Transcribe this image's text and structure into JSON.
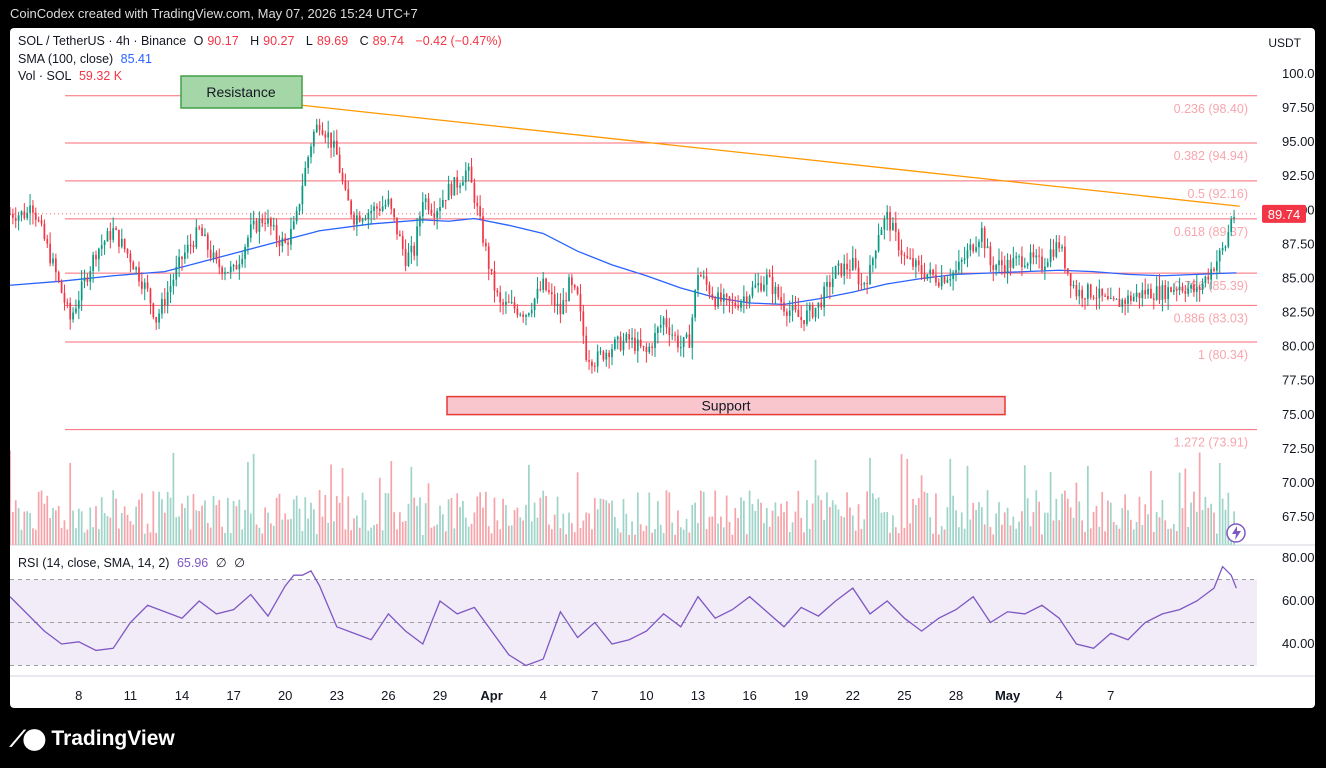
{
  "header": {
    "caption": "CoinCodex created with TradingView.com, May 07, 2026 15:24 UTC+7"
  },
  "legend": {
    "symbol": "SOL / TetherUS · 4h · Binance",
    "o_label": "O",
    "o": "90.17",
    "h_label": "H",
    "h": "90.27",
    "l_label": "L",
    "l": "89.69",
    "c_label": "C",
    "c": "89.74",
    "change": "−0.42 (−0.47%)",
    "sma_label": "SMA (100, close)",
    "sma_value": "85.41",
    "vol_label": "Vol · SOL",
    "vol_value": "59.32 K",
    "rsi_label": "RSI (14, close, SMA, 14, 2)",
    "rsi_value": "65.96",
    "rsi_na1": "∅",
    "rsi_na2": "∅"
  },
  "currency": "USDT",
  "brand": {
    "name": "TradingView",
    "logo_icon": "tradingview-logo-icon"
  },
  "colors": {
    "up": "#089981",
    "down": "#f23645",
    "sma": "#2962ff",
    "fib": "#f7525f",
    "trend": "#ff9800",
    "rsi": "#7e57c2",
    "support_fill": "#f8c6cc",
    "resistance_fill": "#a5d6a7"
  },
  "chart_data": {
    "type": "candlestick",
    "price_ylim": [
      72.5,
      101.5
    ],
    "price_ticks": [
      "100.00",
      "97.50",
      "95.00",
      "92.50",
      "90.00",
      "87.50",
      "85.00",
      "82.50",
      "80.00",
      "77.50",
      "75.00",
      "72.50",
      "70.00",
      "67.50"
    ],
    "price_tick_values": [
      100,
      97.5,
      95,
      92.5,
      90,
      87.5,
      85,
      82.5,
      80,
      77.5,
      75,
      72.5,
      70,
      67.5
    ],
    "last_price": 89.74,
    "last_price_label": "89.74",
    "x_ticks": [
      "8",
      "11",
      "14",
      "17",
      "20",
      "23",
      "26",
      "29",
      "Apr",
      "4",
      "7",
      "10",
      "13",
      "16",
      "19",
      "22",
      "25",
      "28",
      "May",
      "4",
      "7"
    ],
    "fib_levels": [
      {
        "ratio_label": "0.236 (98.40)",
        "price": 98.4
      },
      {
        "ratio_label": "0.382 (94.94)",
        "price": 94.94
      },
      {
        "ratio_label": "0.5 (92.16)",
        "price": 92.16
      },
      {
        "ratio_label": "0.618 (89.37)",
        "price": 89.37
      },
      {
        "ratio_label": "0.786 (85.39)",
        "price": 85.39
      },
      {
        "ratio_label": "0.886 (83.03)",
        "price": 83.03
      },
      {
        "ratio_label": "1 (80.34)",
        "price": 80.34
      },
      {
        "ratio_label": "1.272 (73.91)",
        "price": 73.91
      }
    ],
    "annotations": [
      {
        "label": "Resistance",
        "type": "zone-box",
        "price_top": 100.0,
        "price_bottom": 97.6,
        "from_day": 14.9,
        "to_day": 17.0
      },
      {
        "label": "Support",
        "type": "zone-box",
        "price_top": 76.7,
        "price_bottom": 75.3,
        "from_day": 28.0,
        "to_day": 25.6
      }
    ],
    "trendline": {
      "from": {
        "day": 15.3,
        "price": 97.8
      },
      "to": {
        "day": 7.2,
        "price": 90.3
      }
    },
    "close_path": [
      [
        0,
        91.5
      ],
      [
        1.5,
        86
      ],
      [
        2.5,
        82
      ],
      [
        4,
        87
      ],
      [
        5,
        88.5
      ],
      [
        6,
        86.5
      ],
      [
        7,
        84
      ],
      [
        7.5,
        82
      ],
      [
        8,
        83.5
      ],
      [
        9,
        86.5
      ],
      [
        10,
        88.5
      ],
      [
        11,
        86
      ],
      [
        12,
        85.5
      ],
      [
        13,
        88.5
      ],
      [
        13.8,
        89.5
      ],
      [
        14.5,
        88
      ],
      [
        15,
        87.5
      ],
      [
        15.6,
        89
      ],
      [
        16,
        92
      ],
      [
        16.6,
        95.5
      ],
      [
        17,
        96.5
      ],
      [
        17.5,
        95.5
      ],
      [
        18,
        94
      ],
      [
        18.5,
        91
      ],
      [
        19,
        89.5
      ],
      [
        20,
        90
      ],
      [
        21,
        90.5
      ],
      [
        22,
        86.5
      ],
      [
        22.5,
        87
      ],
      [
        23,
        91
      ],
      [
        23.7,
        90
      ],
      [
        24.5,
        91.5
      ],
      [
        25,
        92
      ],
      [
        25.6,
        93
      ],
      [
        26,
        91
      ],
      [
        26.5,
        88
      ],
      [
        27,
        85
      ],
      [
        27.5,
        83
      ],
      [
        28,
        83
      ],
      [
        29,
        82.5
      ],
      [
        29.5,
        83.5
      ],
      [
        30,
        84.5
      ],
      [
        31,
        82.5
      ],
      [
        31.5,
        84.5
      ],
      [
        32,
        83.5
      ],
      [
        32.5,
        79.5
      ],
      [
        33,
        79
      ],
      [
        34,
        80
      ],
      [
        35,
        80.5
      ],
      [
        36,
        79.5
      ],
      [
        37,
        82
      ],
      [
        38,
        80
      ],
      [
        38.5,
        80.5
      ],
      [
        39,
        85.5
      ],
      [
        40,
        83.5
      ],
      [
        41,
        83
      ],
      [
        42,
        84
      ],
      [
        43,
        85
      ],
      [
        44,
        83
      ],
      [
        45,
        82
      ],
      [
        46,
        83
      ],
      [
        47,
        85.5
      ],
      [
        48,
        86
      ],
      [
        48.5,
        84.5
      ],
      [
        49,
        85.5
      ],
      [
        49.5,
        88.5
      ],
      [
        50,
        89.5
      ],
      [
        51,
        86.5
      ],
      [
        52,
        85.5
      ],
      [
        53,
        85
      ],
      [
        54,
        85.5
      ],
      [
        55,
        87.5
      ],
      [
        55.5,
        88.5
      ],
      [
        56,
        86
      ],
      [
        57,
        86
      ],
      [
        58,
        86.5
      ],
      [
        59,
        86
      ],
      [
        59.5,
        87
      ],
      [
        60,
        87.5
      ],
      [
        60.5,
        85.5
      ],
      [
        61,
        84
      ],
      [
        62,
        84
      ],
      [
        63,
        83
      ],
      [
        64,
        83.5
      ],
      [
        65,
        84
      ],
      [
        66,
        84
      ],
      [
        67,
        84.5
      ],
      [
        68,
        84
      ],
      [
        68.5,
        85
      ],
      [
        69,
        86
      ],
      [
        69.7,
        87.5
      ],
      [
        70,
        89.5
      ],
      [
        70.3,
        89.74
      ]
    ],
    "x_range_days": [
      -1,
      71.5
    ],
    "sma": [
      [
        -1,
        84.5
      ],
      [
        2,
        84.8
      ],
      [
        5,
        85.2
      ],
      [
        8,
        85.5
      ],
      [
        11,
        86.5
      ],
      [
        14,
        87.5
      ],
      [
        17,
        88.5
      ],
      [
        20,
        89
      ],
      [
        23,
        89.3
      ],
      [
        24.5,
        89.2
      ],
      [
        26,
        89.4
      ],
      [
        28,
        88.9
      ],
      [
        30,
        88.3
      ],
      [
        32,
        87
      ],
      [
        34,
        86
      ],
      [
        36,
        85.2
      ],
      [
        38,
        84.3
      ],
      [
        40,
        83.6
      ],
      [
        42,
        83.2
      ],
      [
        44,
        83.1
      ],
      [
        46,
        83.5
      ],
      [
        48,
        84
      ],
      [
        50,
        84.6
      ],
      [
        52,
        85
      ],
      [
        54,
        85.3
      ],
      [
        56,
        85.4
      ],
      [
        58,
        85.5
      ],
      [
        60,
        85.6
      ],
      [
        62,
        85.5
      ],
      [
        64,
        85.3
      ],
      [
        66,
        85.2
      ],
      [
        68,
        85.3
      ],
      [
        70,
        85.4
      ],
      [
        70.3,
        85.41
      ]
    ],
    "rsi_ticks": [
      "80.00",
      "60.00",
      "40.00"
    ],
    "rsi_tick_values": [
      80,
      60,
      40
    ],
    "rsi_ylim": [
      25,
      83
    ],
    "rsi_bands": [
      70,
      50,
      30
    ],
    "rsi": [
      [
        -1,
        62
      ],
      [
        1,
        46
      ],
      [
        2,
        40
      ],
      [
        3,
        41
      ],
      [
        4,
        37
      ],
      [
        5,
        38
      ],
      [
        6,
        50
      ],
      [
        7,
        58
      ],
      [
        8,
        55
      ],
      [
        9,
        52
      ],
      [
        10,
        60
      ],
      [
        11,
        54
      ],
      [
        12,
        56
      ],
      [
        13,
        63
      ],
      [
        14,
        53
      ],
      [
        15,
        67
      ],
      [
        15.5,
        72
      ],
      [
        16,
        72
      ],
      [
        16.5,
        74
      ],
      [
        17,
        67
      ],
      [
        18,
        48
      ],
      [
        19,
        45
      ],
      [
        20,
        42
      ],
      [
        21,
        54
      ],
      [
        22,
        46
      ],
      [
        23,
        40
      ],
      [
        24,
        60
      ],
      [
        25,
        54
      ],
      [
        26,
        57
      ],
      [
        27,
        46
      ],
      [
        28,
        35
      ],
      [
        29,
        30
      ],
      [
        30,
        33
      ],
      [
        31,
        55
      ],
      [
        32,
        43
      ],
      [
        33,
        50
      ],
      [
        34,
        40
      ],
      [
        35,
        42
      ],
      [
        36,
        46
      ],
      [
        37,
        54
      ],
      [
        38,
        48
      ],
      [
        39,
        62
      ],
      [
        40,
        52
      ],
      [
        41,
        56
      ],
      [
        42,
        62
      ],
      [
        43,
        55
      ],
      [
        44,
        48
      ],
      [
        45,
        57
      ],
      [
        46,
        53
      ],
      [
        47,
        60
      ],
      [
        48,
        66
      ],
      [
        49,
        54
      ],
      [
        50,
        60
      ],
      [
        51,
        52
      ],
      [
        52,
        46
      ],
      [
        53,
        52
      ],
      [
        54,
        56
      ],
      [
        55,
        62
      ],
      [
        56,
        50
      ],
      [
        57,
        55
      ],
      [
        58,
        54
      ],
      [
        59,
        58
      ],
      [
        60,
        52
      ],
      [
        61,
        40
      ],
      [
        62,
        38
      ],
      [
        63,
        45
      ],
      [
        64,
        42
      ],
      [
        65,
        50
      ],
      [
        66,
        54
      ],
      [
        67,
        56
      ],
      [
        68,
        60
      ],
      [
        69,
        66
      ],
      [
        69.5,
        76
      ],
      [
        70,
        72
      ],
      [
        70.3,
        65.96
      ]
    ]
  }
}
